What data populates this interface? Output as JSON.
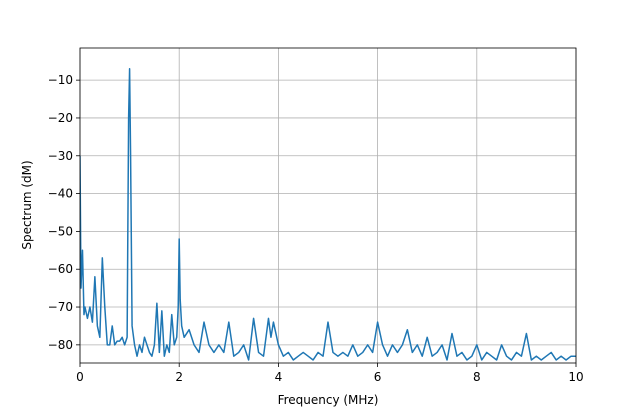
{
  "chart_data": {
    "type": "line",
    "xlabel": "Frequency (MHz)",
    "ylabel": "Spectrum (dM)",
    "xlim": [
      0,
      10
    ],
    "ylim": [
      -84.8,
      -1.5
    ],
    "xticks": [
      0,
      2,
      4,
      6,
      8,
      10
    ],
    "yticks": [
      {
        "value": -10,
        "label": "−10"
      },
      {
        "value": -20,
        "label": "−20"
      },
      {
        "value": -30,
        "label": "−30"
      },
      {
        "value": -40,
        "label": "−40"
      },
      {
        "value": -50,
        "label": "−50"
      },
      {
        "value": -60,
        "label": "−60"
      },
      {
        "value": -70,
        "label": "−70"
      },
      {
        "value": -80,
        "label": "−80"
      }
    ],
    "grid": true,
    "x": [
      0,
      0.02,
      0.05,
      0.08,
      0.1,
      0.15,
      0.2,
      0.25,
      0.3,
      0.35,
      0.4,
      0.45,
      0.5,
      0.55,
      0.6,
      0.65,
      0.7,
      0.75,
      0.8,
      0.85,
      0.9,
      0.95,
      0.98,
      1.0,
      1.02,
      1.05,
      1.1,
      1.15,
      1.2,
      1.25,
      1.3,
      1.35,
      1.4,
      1.45,
      1.5,
      1.55,
      1.6,
      1.65,
      1.7,
      1.75,
      1.8,
      1.85,
      1.9,
      1.95,
      1.98,
      2.0,
      2.02,
      2.05,
      2.1,
      2.2,
      2.3,
      2.4,
      2.5,
      2.6,
      2.7,
      2.8,
      2.9,
      3.0,
      3.1,
      3.2,
      3.3,
      3.4,
      3.5,
      3.6,
      3.7,
      3.8,
      3.85,
      3.9,
      4.0,
      4.1,
      4.2,
      4.3,
      4.4,
      4.5,
      4.6,
      4.7,
      4.8,
      4.9,
      5.0,
      5.1,
      5.2,
      5.3,
      5.4,
      5.5,
      5.6,
      5.7,
      5.8,
      5.9,
      6.0,
      6.1,
      6.2,
      6.3,
      6.4,
      6.5,
      6.6,
      6.7,
      6.8,
      6.9,
      7.0,
      7.1,
      7.2,
      7.3,
      7.4,
      7.5,
      7.6,
      7.7,
      7.8,
      7.9,
      8.0,
      8.1,
      8.2,
      8.3,
      8.4,
      8.5,
      8.6,
      8.7,
      8.8,
      8.9,
      9.0,
      9.1,
      9.2,
      9.3,
      9.4,
      9.5,
      9.6,
      9.7,
      9.8,
      9.9,
      10.0
    ],
    "series": [
      {
        "color": "#1f77b4",
        "values": [
          -30,
          -65,
          -55,
          -72,
          -70,
          -73,
          -70,
          -74,
          -62,
          -75,
          -78,
          -57,
          -70,
          -80,
          -80,
          -75,
          -80,
          -79,
          -79,
          -78,
          -80,
          -78,
          -20,
          -7,
          -30,
          -75,
          -80,
          -83,
          -80,
          -82,
          -78,
          -80,
          -82,
          -83,
          -80,
          -69,
          -82,
          -71,
          -83,
          -80,
          -82,
          -72,
          -80,
          -78,
          -70,
          -52,
          -68,
          -75,
          -78,
          -76,
          -80,
          -82,
          -74,
          -80,
          -82,
          -80,
          -82,
          -74,
          -83,
          -82,
          -80,
          -84,
          -73,
          -82,
          -83,
          -73,
          -78,
          -74,
          -80,
          -83,
          -82,
          -84,
          -83,
          -82,
          -83,
          -84,
          -82,
          -83,
          -74,
          -82,
          -83,
          -82,
          -83,
          -80,
          -83,
          -82,
          -80,
          -82,
          -74,
          -80,
          -83,
          -80,
          -82,
          -80,
          -76,
          -82,
          -80,
          -83,
          -78,
          -83,
          -82,
          -80,
          -84,
          -77,
          -83,
          -82,
          -84,
          -83,
          -80,
          -84,
          -82,
          -83,
          -84,
          -80,
          -83,
          -84,
          -82,
          -83,
          -77,
          -84,
          -83,
          -84,
          -83,
          -82,
          -84,
          -83,
          -84,
          -83,
          -83
        ]
      }
    ]
  }
}
